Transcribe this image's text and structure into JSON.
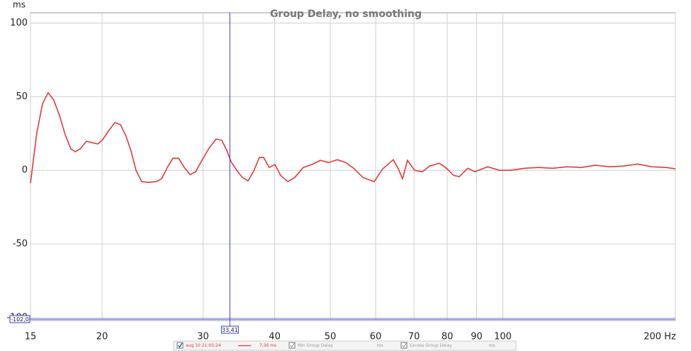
{
  "chart_data": {
    "type": "line",
    "title": "Group Delay, no smoothing",
    "y_unit": "ms",
    "x_scale": "log",
    "grid": true,
    "xlim": [
      15,
      200
    ],
    "ylim": [
      -102,
      107
    ],
    "xticks": [
      15,
      20,
      30,
      40,
      50,
      60,
      70,
      80,
      90,
      100,
      {
        "value": 200,
        "label": "200 Hz"
      }
    ],
    "yticks": [
      100,
      50,
      0,
      -50,
      -100
    ],
    "series": [
      {
        "name": "aug 10 21:05:24",
        "color": "#e03a3a",
        "x": [
          15,
          15.39,
          15.74,
          16.1,
          16.46,
          16.84,
          17.25,
          17.64,
          17.95,
          18.31,
          18.78,
          19.21,
          19.66,
          20.05,
          20.51,
          21.05,
          21.53,
          22.03,
          22.47,
          22.92,
          23.45,
          24.13,
          24.83,
          25.4,
          25.98,
          26.58,
          27.19,
          27.82,
          28.46,
          29.11,
          29.87,
          30.73,
          31.62,
          32.35,
          33.0,
          33.57,
          34.34,
          35.13,
          35.94,
          36.77,
          37.61,
          38.26,
          39.14,
          40.04,
          40.96,
          42.15,
          43.37,
          44.87,
          46.43,
          48.05,
          49.71,
          51.44,
          53.23,
          55.08,
          56.99,
          59.65,
          61.72,
          64.41,
          65.71,
          66.84,
          68.19,
          70.16,
          72.39,
          74.48,
          77.51,
          79.75,
          82.05,
          83.94,
          86.85,
          89.36,
          94.06,
          98.72,
          103.0,
          109.1,
          115.5,
          122.2,
          129.4,
          137.0,
          145.0,
          153.5,
          162.4,
          172.0,
          182.0,
          192.7,
          200
        ],
        "values": [
          -8.7,
          25.6,
          45,
          52.7,
          48,
          37.7,
          24,
          14.5,
          12.6,
          14.5,
          19.8,
          18.8,
          17.9,
          20.8,
          26.6,
          32.4,
          31,
          23,
          13,
          0,
          -7.7,
          -8.2,
          -7.7,
          -5.8,
          1.9,
          8.2,
          8.2,
          1.9,
          -2.9,
          -1,
          6.8,
          15,
          21.3,
          20.3,
          13.5,
          5.8,
          0,
          -4.8,
          -7.2,
          -0.5,
          8.7,
          8.7,
          1.9,
          3.9,
          -3.4,
          -7.7,
          -4.8,
          1.9,
          3.9,
          6.8,
          5.3,
          7.2,
          5.3,
          1,
          -4.8,
          -7.7,
          1,
          7.2,
          1,
          -5.8,
          6.8,
          0,
          -1,
          2.9,
          4.8,
          1.4,
          -3.4,
          -4.3,
          1.4,
          -1,
          2.4,
          0,
          0,
          1.4,
          1.9,
          1.4,
          2.4,
          1.9,
          3.4,
          2.4,
          2.9,
          4.3,
          2.4,
          1.9,
          1
        ]
      }
    ],
    "cursor": {
      "x": 33.41,
      "x_label": "33,41",
      "y": -102.0,
      "y_label": "-102,0",
      "color": "#3a3ad8"
    },
    "legend": [
      {
        "name": "aug 10 21:05:24",
        "value_label": "7,36 ms",
        "checked": true
      },
      {
        "name": "Min Group Delay",
        "value_label": "ms",
        "checked": true
      },
      {
        "name": "Excess Group Delay",
        "value_label": "ms",
        "checked": true
      }
    ]
  }
}
